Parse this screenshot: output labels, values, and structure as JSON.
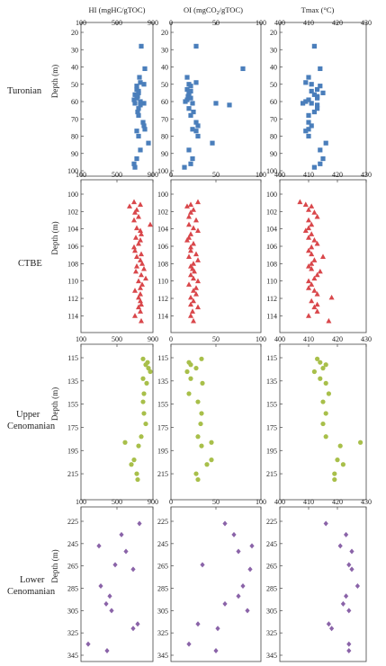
{
  "headers": {
    "hi": "HI (mgHC/gTOC)",
    "oi": "OI (mgCO2/gTOC)",
    "tmax": "Tmax (°C)"
  },
  "depth_label": "Depth (m)",
  "row_labels": {
    "turonian": "Turonian",
    "ctbe": "CTBE",
    "upper1": "Upper",
    "upper2": "Cenomanian",
    "lower1": "Lower",
    "lower2": "Cenomanian"
  },
  "colors": {
    "turonian": "#4a7ebb",
    "ctbe": "#d9474b",
    "upper": "#a8bf4a",
    "lower": "#8a63a8",
    "axis": "#666666",
    "text": "#222222"
  },
  "columns": {
    "hi": {
      "min": 100,
      "max": 900,
      "ticks": [
        "100",
        "500",
        "900"
      ]
    },
    "oi": {
      "min": 0,
      "max": 100,
      "ticks": [
        "0",
        "50",
        "100"
      ]
    },
    "tmax": {
      "min": 400,
      "max": 430,
      "ticks": [
        "400",
        "410",
        "420",
        "430"
      ]
    }
  },
  "chart_data": [
    {
      "type": "scatter",
      "row": "Turonian",
      "marker": "square",
      "ylim": [
        20,
        100
      ],
      "yticks": [
        "20",
        "30",
        "40",
        "50",
        "60",
        "70",
        "80",
        "90",
        "100"
      ],
      "y_inverted": true,
      "hi_x": [
        770,
        810,
        750,
        800,
        740,
        700,
        730,
        720,
        690,
        760,
        800,
        700,
        760,
        740,
        730,
        740,
        790,
        800,
        810,
        720,
        740,
        850,
        760,
        720,
        690,
        700,
        760,
        720,
        740,
        720
      ],
      "oi_x": [
        28,
        80,
        18,
        20,
        22,
        20,
        19,
        22,
        18,
        16,
        24,
        50,
        65,
        20,
        25,
        22,
        28,
        30,
        24,
        28,
        30,
        46,
        20,
        24,
        22,
        15,
        28,
        18,
        20,
        22
      ],
      "tmax_x": [
        412,
        414,
        410,
        411,
        411,
        412,
        413,
        413,
        410,
        409,
        408,
        411,
        413,
        413,
        412,
        410,
        410,
        411,
        410,
        409,
        410,
        416,
        414,
        415,
        414,
        412,
        409,
        413,
        415,
        414
      ],
      "depth": [
        28,
        41,
        46,
        50,
        54,
        56,
        57,
        58,
        59,
        60,
        61,
        61,
        62,
        64,
        66,
        68,
        72,
        74,
        76,
        77,
        80,
        84,
        88,
        93,
        96,
        98,
        49,
        53,
        55,
        51
      ]
    },
    {
      "type": "scatter",
      "row": "CTBE",
      "marker": "triangle",
      "ylim": [
        100,
        115
      ],
      "yticks": [
        "100",
        "102",
        "104",
        "106",
        "108",
        "110",
        "112",
        "114"
      ],
      "y_inverted": true,
      "hi_x": [
        690,
        760,
        640,
        720,
        700,
        740,
        690,
        870,
        720,
        760,
        770,
        710,
        760,
        740,
        690,
        700,
        770,
        720,
        760,
        780,
        720,
        800,
        710,
        770,
        820,
        740,
        780,
        760,
        700,
        760,
        740,
        760,
        770,
        740,
        760,
        700,
        770
      ],
      "oi_x": [
        30,
        22,
        18,
        25,
        22,
        20,
        28,
        20,
        25,
        30,
        22,
        20,
        18,
        25,
        22,
        22,
        28,
        20,
        30,
        25,
        22,
        24,
        26,
        22,
        25,
        30,
        20,
        28,
        25,
        28,
        22,
        25,
        22,
        30,
        24,
        22,
        25
      ],
      "tmax_x": [
        407,
        409,
        411,
        410,
        412,
        413,
        410,
        411,
        410,
        409,
        411,
        410,
        412,
        413,
        411,
        410,
        411,
        415,
        412,
        411,
        410,
        411,
        414,
        413,
        412,
        410,
        411,
        410,
        412,
        413,
        418,
        411,
        413,
        412,
        413,
        410,
        417
      ],
      "depth": [
        100.9,
        101.2,
        101.4,
        101.8,
        102.1,
        102.6,
        103.0,
        103.5,
        103.9,
        104.2,
        104.6,
        105.0,
        105.3,
        105.7,
        106.1,
        106.5,
        106.9,
        107.2,
        107.6,
        108.0,
        108.3,
        108.6,
        108.9,
        109.3,
        109.7,
        110.0,
        110.4,
        110.8,
        111.1,
        111.5,
        111.9,
        112.3,
        112.7,
        113.0,
        113.5,
        114.0,
        114.6
      ]
    },
    {
      "type": "scatter",
      "row": "Upper Cenomanian",
      "marker": "circle",
      "ylim": [
        115,
        225
      ],
      "yticks": [
        "115",
        "135",
        "155",
        "175",
        "195",
        "215"
      ],
      "y_inverted": true,
      "hi_x": [
        790,
        840,
        820,
        870,
        850,
        790,
        830,
        800,
        790,
        800,
        820,
        770,
        590,
        740,
        690,
        660,
        720,
        730
      ],
      "oi_x": [
        34,
        20,
        22,
        18,
        28,
        22,
        35,
        20,
        30,
        34,
        33,
        30,
        45,
        34,
        45,
        40,
        28,
        30
      ],
      "tmax_x": [
        413,
        414,
        416,
        412,
        415,
        414,
        416,
        417,
        415,
        416,
        415,
        416,
        428,
        421,
        420,
        422,
        419,
        419
      ],
      "depth": [
        116,
        119,
        121,
        127,
        124,
        133,
        137,
        146,
        153,
        163,
        172,
        183,
        188,
        191,
        203,
        207,
        215,
        220
      ]
    },
    {
      "type": "scatter",
      "row": "Lower Cenomanian",
      "marker": "diamond",
      "ylim": [
        225,
        345
      ],
      "yticks": [
        "225",
        "245",
        "265",
        "285",
        "305",
        "325",
        "345"
      ],
      "y_inverted": true,
      "hi_x": [
        750,
        550,
        300,
        600,
        480,
        680,
        320,
        420,
        380,
        440,
        730,
        680,
        180,
        390
      ],
      "oi_x": [
        60,
        70,
        90,
        75,
        35,
        88,
        80,
        75,
        60,
        85,
        30,
        52,
        20,
        50
      ],
      "tmax_x": [
        416,
        423,
        421,
        425,
        424,
        425,
        427,
        423,
        422,
        424,
        417,
        418,
        424,
        424
      ],
      "depth": [
        227,
        237,
        247,
        252,
        264,
        268,
        283,
        292,
        299,
        305,
        317,
        321,
        335,
        341
      ]
    }
  ]
}
